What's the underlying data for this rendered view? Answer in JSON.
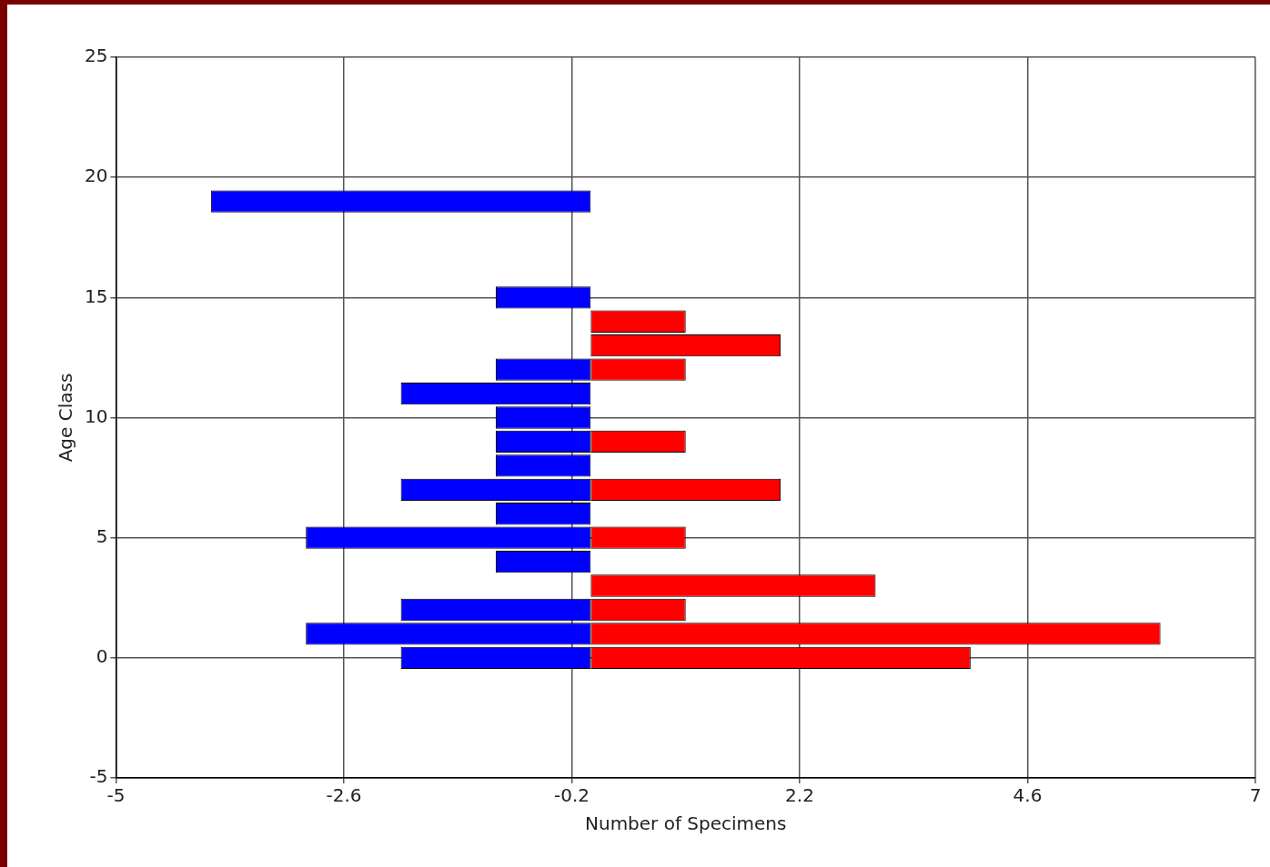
{
  "chart_data": {
    "type": "bar",
    "orientation": "horizontal",
    "xlabel": "Number of Specimens",
    "ylabel": "Age Class",
    "x": [
      0,
      1,
      2,
      3,
      4,
      5,
      6,
      7,
      8,
      9,
      10,
      11,
      12,
      13,
      14,
      15,
      16,
      17,
      18,
      19
    ],
    "series": [
      {
        "color": "#0000ff",
        "values": [
          -2,
          -3,
          -2,
          null,
          -1,
          -3,
          -1,
          -2,
          -1,
          -1,
          -1,
          -2,
          -1,
          null,
          null,
          -1,
          null,
          null,
          null,
          -4
        ]
      },
      {
        "color": "#ff0000",
        "values": [
          4,
          6,
          1,
          3,
          null,
          1,
          null,
          2,
          null,
          1,
          null,
          null,
          1,
          2,
          1,
          null,
          null,
          null,
          null,
          null
        ]
      }
    ],
    "xlim": [
      -5,
      7
    ],
    "xticks": [
      -5,
      -2.6,
      -0.2,
      2.2,
      4.6,
      7
    ],
    "ylim": [
      -5,
      25
    ],
    "yticks": [
      -5,
      0,
      5,
      10,
      15,
      20,
      25
    ],
    "grid": true,
    "legend": false
  }
}
